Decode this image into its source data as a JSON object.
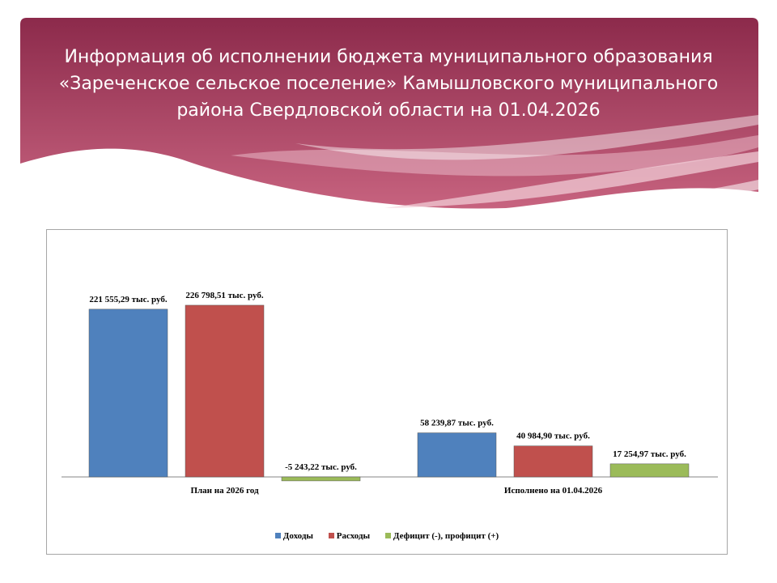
{
  "header": {
    "title_lines": [
      "Информация об исполнении бюджета муниципального образования",
      "«Зареченское сельское поселение» Камышловского муниципального",
      "района Свердловской области на 01.04.2026"
    ]
  },
  "colors": {
    "banner_top": "#8c2a4b",
    "banner_bottom": "#c7637f",
    "series": [
      "#4f81bd",
      "#c0504d",
      "#9bbb59"
    ]
  },
  "chart_data": {
    "type": "bar",
    "categories": [
      "План  на 2026 год",
      "Исполнено  на  01.04.2026"
    ],
    "series": [
      {
        "name": "Доходы",
        "values": [
          221555.29,
          58239.87
        ],
        "labels": [
          "221 555,29 тыс.  руб.",
          "58 239,87 тыс.  руб."
        ]
      },
      {
        "name": "Расходы",
        "values": [
          226798.51,
          40984.9
        ],
        "labels": [
          "226 798,51 тыс.  руб.",
          "40 984,90 тыс.  руб."
        ]
      },
      {
        "name": "Дефицит  (-),  профицит  (+)",
        "values": [
          -5243.22,
          17254.97
        ],
        "labels": [
          "-5 243,22 тыс.  руб.",
          "17 254,97 тыс.  руб."
        ]
      }
    ],
    "units": "тыс. руб.",
    "grid": false,
    "legend": "bottom"
  }
}
